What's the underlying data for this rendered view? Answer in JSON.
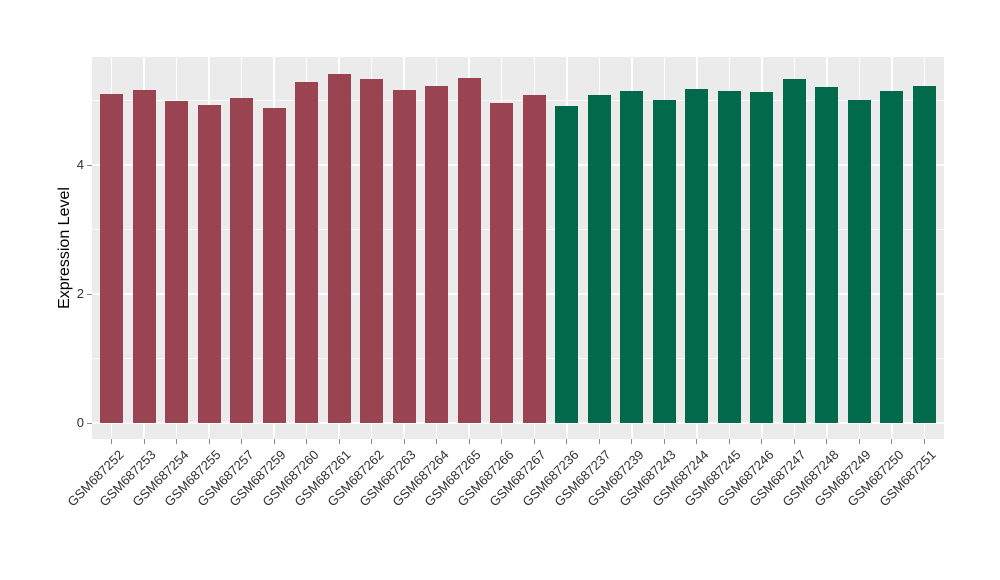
{
  "chart_data": {
    "type": "bar",
    "title": "",
    "xlabel": "",
    "ylabel": "Expression Level",
    "legend": "none",
    "grid": "on",
    "panel_bg": "#EBEBEB",
    "grid_color": "#FFFFFF",
    "axis_text_color": "#303030",
    "tick_color": "#888888",
    "yticks": [
      0,
      2,
      4
    ],
    "y_minor_ticks": [
      1,
      3,
      5
    ],
    "ylim": [
      -0.25,
      5.67
    ],
    "group_colors": {
      "maroon_group": "#9B4451",
      "green_group": "#006A4B"
    },
    "categories": [
      "GSM687252",
      "GSM687253",
      "GSM687254",
      "GSM687255",
      "GSM687257",
      "GSM687259",
      "GSM687260",
      "GSM687261",
      "GSM687262",
      "GSM687263",
      "GSM687264",
      "GSM687265",
      "GSM687266",
      "GSM687267",
      "GSM687236",
      "GSM687237",
      "GSM687239",
      "GSM687243",
      "GSM687244",
      "GSM687245",
      "GSM687246",
      "GSM687247",
      "GSM687248",
      "GSM687249",
      "GSM687250",
      "GSM687251"
    ],
    "values": [
      5.1,
      5.17,
      4.99,
      4.93,
      5.04,
      4.89,
      5.28,
      5.41,
      5.33,
      5.16,
      5.22,
      5.35,
      4.96,
      5.09,
      4.91,
      5.09,
      5.15,
      5.01,
      5.18,
      5.15,
      5.13,
      5.33,
      5.21,
      5.01,
      5.14,
      5.22
    ],
    "bar_groups": [
      "maroon_group",
      "maroon_group",
      "maroon_group",
      "maroon_group",
      "maroon_group",
      "maroon_group",
      "maroon_group",
      "maroon_group",
      "maroon_group",
      "maroon_group",
      "maroon_group",
      "maroon_group",
      "maroon_group",
      "maroon_group",
      "green_group",
      "green_group",
      "green_group",
      "green_group",
      "green_group",
      "green_group",
      "green_group",
      "green_group",
      "green_group",
      "green_group",
      "green_group",
      "green_group"
    ]
  }
}
